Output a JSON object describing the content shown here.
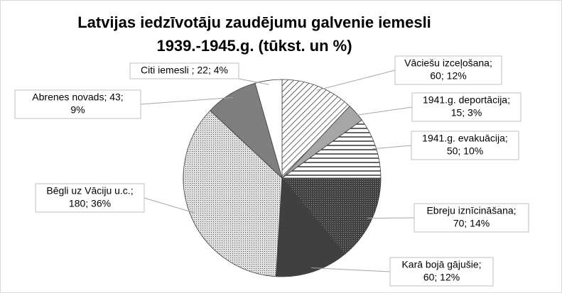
{
  "chart_data": {
    "type": "pie",
    "title": [
      "Latvijas iedzīvotāju zaudējumu galvenie iemesli",
      "1939.-1945.g. (tūkst. un %)"
    ],
    "values": [
      60,
      15,
      50,
      70,
      60,
      180,
      43,
      22
    ],
    "data_labels": [
      [
        "Vāciešu izceļošana;",
        "60; 12%"
      ],
      [
        "1941.g. deportācija;",
        "15; 3%"
      ],
      [
        "1941.g. evakuācija;",
        "50; 10%"
      ],
      [
        "Ebreju iznīcināšana;",
        "70; 14%"
      ],
      [
        "Karā bojā gājušie;",
        "60; 12%"
      ],
      [
        "Bēgli uz Vāciju u.c.;",
        "180; 36%"
      ],
      [
        "Abrenes novads; 43;",
        "9%"
      ],
      [
        "Citi iemesli ; 22; 4%"
      ]
    ],
    "colors": [
      "#ffffff",
      "#a6a6a6",
      "#ffffff",
      "#404040",
      "#404040",
      "#e0e0e0",
      "#7f7f7f",
      "#ffffff"
    ],
    "patterns": [
      "diagonal",
      "solid",
      "horizontal",
      "dots",
      "solid",
      "dots",
      "solid",
      "solid"
    ]
  }
}
